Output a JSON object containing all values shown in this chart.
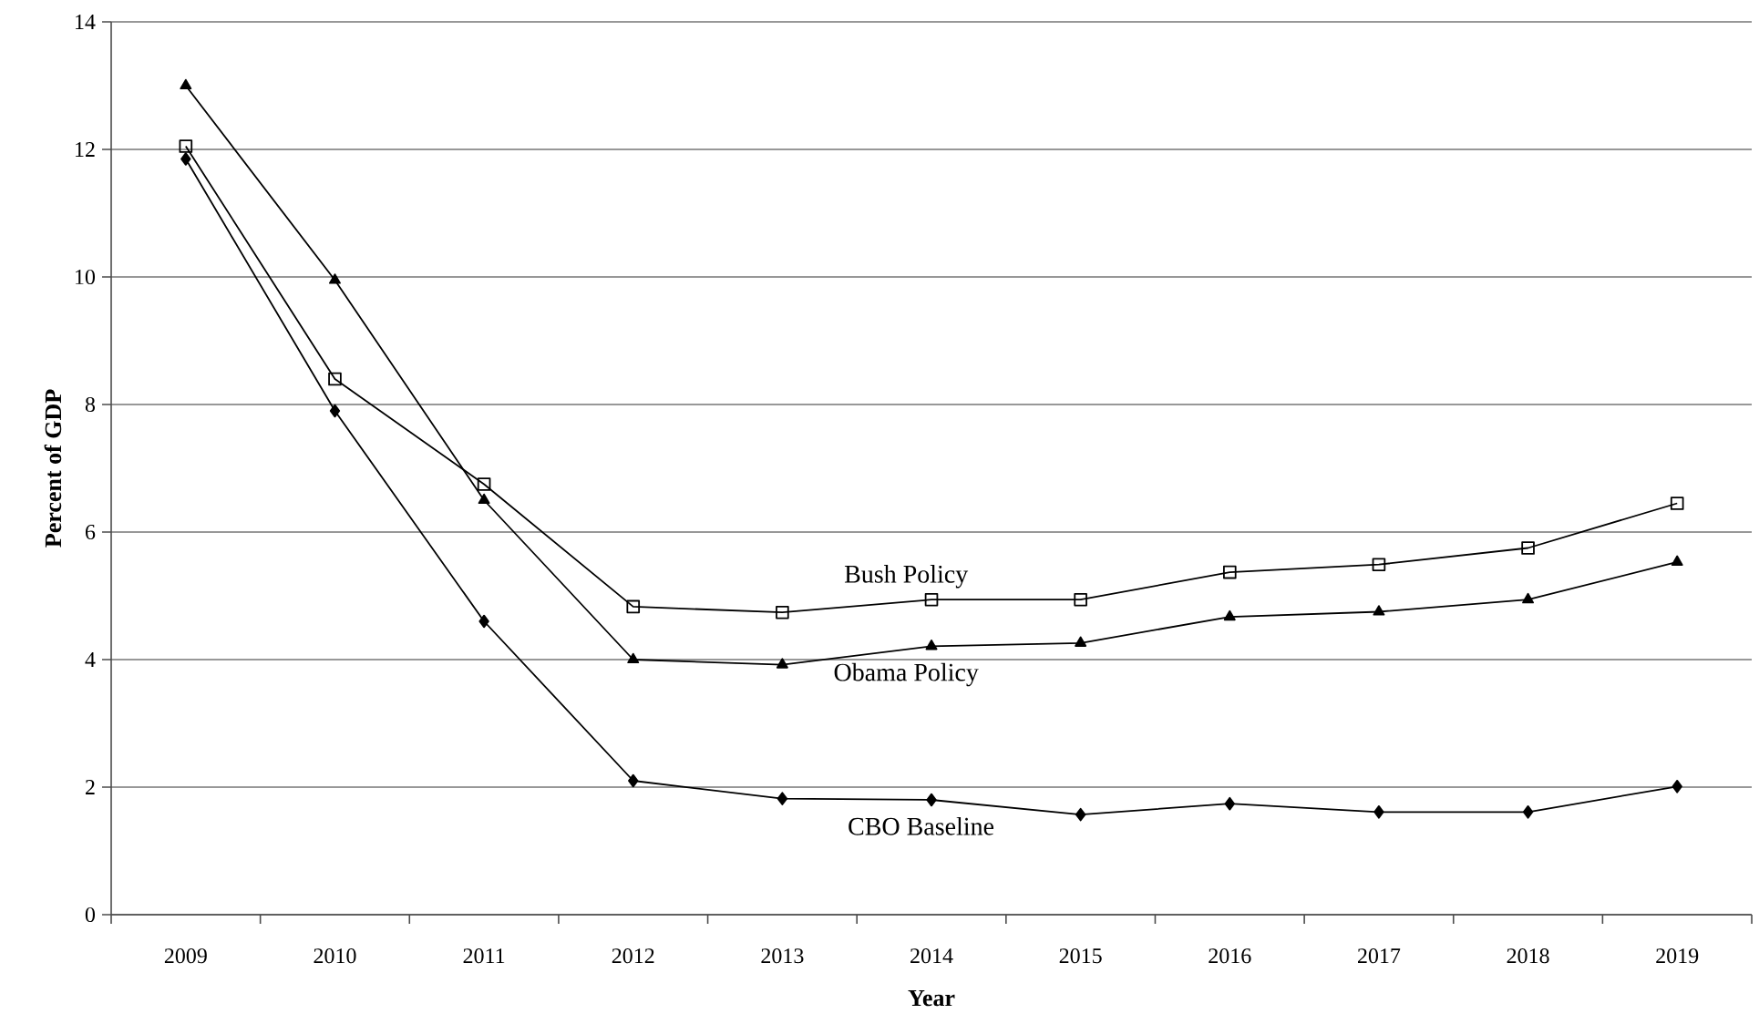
{
  "chart_data": {
    "type": "line",
    "xlabel": "Year",
    "ylabel": "Percent of GDP",
    "categories": [
      "2009",
      "2010",
      "2011",
      "2012",
      "2013",
      "2014",
      "2015",
      "2016",
      "2017",
      "2018",
      "2019"
    ],
    "series": [
      {
        "name": "Bush Policy",
        "color": "#000000",
        "marker": "square",
        "values": [
          12.05,
          8.4,
          6.75,
          4.83,
          4.74,
          4.94,
          4.94,
          5.37,
          5.49,
          5.75,
          6.45
        ]
      },
      {
        "name": "Obama Policy",
        "color": "#000000",
        "marker": "triangle",
        "values": [
          13.0,
          9.95,
          6.5,
          4.0,
          3.92,
          4.21,
          4.26,
          4.67,
          4.75,
          4.94,
          5.53
        ]
      },
      {
        "name": "CBO Baseline",
        "color": "#000000",
        "marker": "diamond",
        "values": [
          11.85,
          7.9,
          4.6,
          2.1,
          1.82,
          1.8,
          1.57,
          1.74,
          1.61,
          1.61,
          2.01
        ]
      }
    ],
    "ylim": [
      0,
      14
    ],
    "yticks": [
      0,
      2,
      4,
      6,
      8,
      10,
      12,
      14
    ],
    "grid": "y",
    "line_style": "solid"
  }
}
